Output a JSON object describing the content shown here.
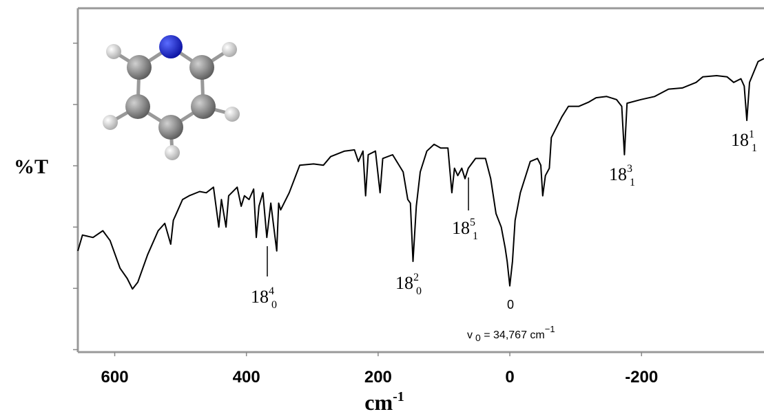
{
  "chart_data": {
    "type": "line",
    "y_label": "%T",
    "x_label": {
      "text": "cm",
      "sup": "-1"
    },
    "xlim": [
      656,
      -386
    ],
    "ylim": [
      -0.04,
      5.57
    ],
    "xticks": [
      600,
      400,
      200,
      0,
      -200
    ],
    "yticks": [
      0,
      1,
      2,
      3,
      4,
      5
    ],
    "series": [
      {
        "color": "#000000",
        "x": [
          656,
          649,
          633,
          618,
          607,
          592,
          581,
          573,
          565,
          550,
          534,
          524,
          515,
          511,
          497,
          487,
          471,
          461,
          450,
          442,
          438,
          431,
          427,
          414,
          408,
          403,
          396,
          389,
          385,
          381,
          375,
          369,
          363,
          354,
          351,
          348,
          335,
          319,
          298,
          283,
          272,
          251,
          236,
          230,
          223,
          219,
          215,
          204,
          197,
          193,
          178,
          162,
          155,
          151,
          147,
          142,
          136,
          126,
          115,
          105,
          94,
          88,
          84,
          79,
          73,
          68,
          63,
          52,
          37,
          29,
          21,
          13,
          7,
          4,
          0,
          -4,
          -8,
          -16,
          -31,
          -42,
          -47,
          -50,
          -54,
          -60,
          -63,
          -79,
          -89,
          -105,
          -120,
          -131,
          -147,
          -162,
          -170,
          -174,
          -178,
          -199,
          -220,
          -241,
          -262,
          -283,
          -293,
          -314,
          -330,
          -340,
          -351,
          -356,
          -360,
          -364,
          -377,
          -386
        ],
        "values": [
          1.61,
          1.87,
          1.83,
          1.94,
          1.78,
          1.33,
          1.16,
          0.99,
          1.1,
          1.55,
          1.94,
          2.06,
          1.72,
          2.11,
          2.45,
          2.51,
          2.58,
          2.56,
          2.65,
          2.0,
          2.45,
          2.0,
          2.51,
          2.65,
          2.34,
          2.51,
          2.45,
          2.62,
          1.83,
          2.34,
          2.56,
          1.83,
          2.39,
          1.61,
          2.39,
          2.28,
          2.56,
          3.01,
          3.03,
          3.01,
          3.15,
          3.24,
          3.26,
          3.07,
          3.24,
          2.51,
          3.18,
          3.24,
          2.56,
          3.12,
          3.18,
          2.9,
          2.45,
          2.39,
          1.44,
          2.34,
          2.9,
          3.24,
          3.35,
          3.29,
          3.29,
          2.56,
          2.96,
          2.84,
          2.96,
          2.79,
          2.96,
          3.12,
          3.12,
          2.79,
          2.22,
          2.0,
          1.66,
          1.44,
          1.04,
          1.44,
          2.11,
          2.56,
          3.07,
          3.12,
          3.01,
          2.51,
          2.84,
          2.96,
          3.46,
          3.8,
          3.97,
          3.97,
          4.04,
          4.11,
          4.13,
          4.08,
          3.97,
          3.18,
          4.02,
          4.08,
          4.13,
          4.25,
          4.27,
          4.36,
          4.45,
          4.47,
          4.45,
          4.36,
          4.42,
          4.3,
          3.74,
          4.36,
          4.7,
          4.75
        ]
      }
    ],
    "annotations": [
      {
        "text": "18",
        "sub": "0",
        "sup": "4"
      },
      {
        "text": "18",
        "sub": "0",
        "sup": "2"
      },
      {
        "text": "18",
        "sub": "1",
        "sup": "5"
      },
      {
        "text": "18",
        "sub": "1",
        "sup": "3"
      },
      {
        "text": "18",
        "sub": "1",
        "sup": "1"
      }
    ],
    "origin_label": "0",
    "origin_note": {
      "text": "v",
      "sub": "0",
      "rest": " = 34,767 cm",
      "sup": "−1"
    }
  }
}
